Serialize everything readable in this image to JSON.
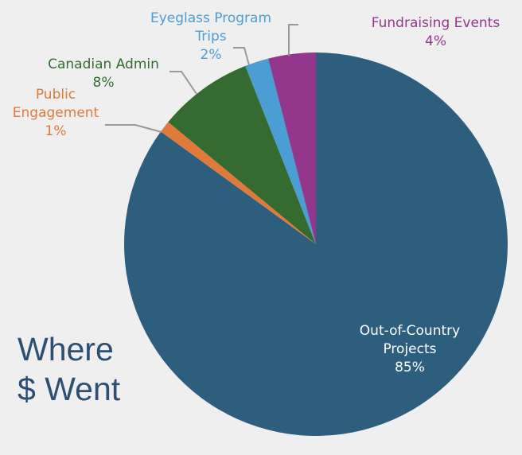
{
  "chart_data": {
    "type": "pie",
    "title": "Where $ Went",
    "title_lines": [
      "Where",
      "$ Went"
    ],
    "slices": [
      {
        "label": "Out-of-Country Projects",
        "label_lines": [
          "Out-of-Country",
          "Projects"
        ],
        "value": 85,
        "pct_label": "85%",
        "color": "#2e5e7e",
        "label_color": "#ffffff"
      },
      {
        "label": "Public Engagement",
        "label_lines": [
          "Public",
          "Engagement"
        ],
        "value": 1,
        "pct_label": "1%",
        "color": "#e07a3a",
        "label_color": "#e07a3a"
      },
      {
        "label": "Canadian Admin",
        "label_lines": [
          "Canadian Admin"
        ],
        "value": 8,
        "pct_label": "8%",
        "color": "#356b31",
        "label_color": "#356b31"
      },
      {
        "label": "Eyeglass Program Trips",
        "label_lines": [
          "Eyeglass Program",
          "Trips"
        ],
        "value": 2,
        "pct_label": "2%",
        "color": "#4a9ed4",
        "label_color": "#4a9ed4"
      },
      {
        "label": "Fundraising Events",
        "label_lines": [
          "Fundraising Events"
        ],
        "value": 4,
        "pct_label": "4%",
        "color": "#93378d",
        "label_color": "#93378d"
      }
    ]
  }
}
